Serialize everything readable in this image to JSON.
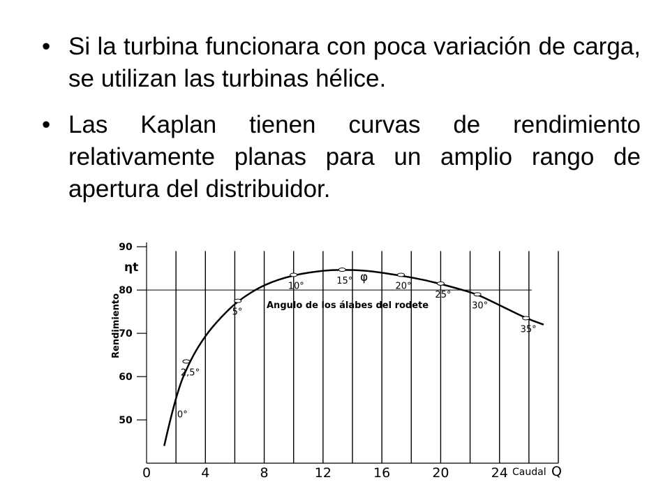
{
  "slide": {
    "bullets": [
      "Si la turbina funcionara con poca variación de carga, se utilizan las turbinas hélice.",
      "Las Kaplan tienen curvas de rendimiento relativamente planas para un amplio rango de apertura del distribuidor."
    ]
  },
  "chart_data": {
    "type": "line",
    "title": "",
    "ylabel": "Rendimiento",
    "ysymbol": "ηt",
    "xlabel": "Caudal",
    "xsymbol": "Q",
    "xticks": [
      0,
      4,
      8,
      12,
      16,
      20,
      24
    ],
    "yticks": [
      50,
      60,
      70,
      80,
      90
    ],
    "xlim": [
      0,
      28
    ],
    "ylim": [
      40,
      91
    ],
    "grid": true,
    "annotation": "Angulo de los álabes del rodete",
    "phi_symbol": "φ",
    "series": [
      {
        "points": [
          [
            1.2,
            44
          ],
          [
            2.0,
            56
          ],
          [
            3.0,
            64
          ],
          [
            4.0,
            69.5
          ],
          [
            5.0,
            73.5
          ],
          [
            6.2,
            77.5
          ],
          [
            8.0,
            81.3
          ],
          [
            10.0,
            83.5
          ],
          [
            12.0,
            84.5
          ],
          [
            13.3,
            84.7
          ],
          [
            15.0,
            84.5
          ],
          [
            17.0,
            83.5
          ],
          [
            19.0,
            82.3
          ],
          [
            21.0,
            80.5
          ],
          [
            22.5,
            79.0
          ],
          [
            24.0,
            76.5
          ],
          [
            25.8,
            73.5
          ],
          [
            27.0,
            72.0
          ]
        ]
      }
    ],
    "angle_markers": [
      {
        "label": "0°",
        "x": 1.8,
        "y": 51.5
      },
      {
        "label": "2,5°",
        "x": 2.7,
        "y": 63.5
      },
      {
        "label": "5°",
        "x": 6.2,
        "y": 77.5
      },
      {
        "label": "10°",
        "x": 10.0,
        "y": 83.5
      },
      {
        "label": "15°",
        "x": 13.3,
        "y": 84.7
      },
      {
        "label": "20°",
        "x": 17.3,
        "y": 83.5
      },
      {
        "label": "25°",
        "x": 20.0,
        "y": 81.5
      },
      {
        "label": "30°",
        "x": 22.5,
        "y": 79.0
      },
      {
        "label": "35°",
        "x": 25.8,
        "y": 73.5
      }
    ]
  }
}
